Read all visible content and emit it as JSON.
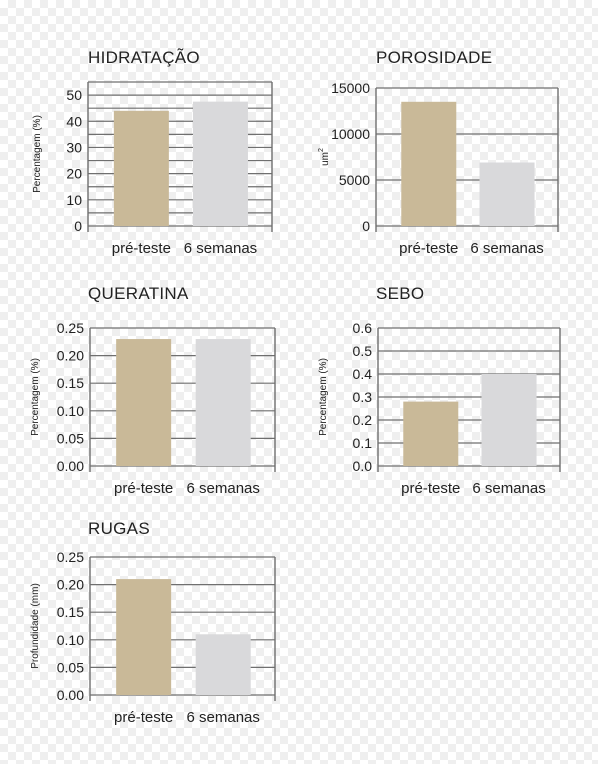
{
  "colors": {
    "pre_teste": "#c9b998",
    "semanas": "#d9d9db",
    "grid": "#6f6f6f"
  },
  "chart_data": [
    {
      "id": "hidratacao",
      "type": "bar",
      "title": "HIDRATAÇÃO",
      "ylabel": "Percentagem (%)",
      "ylabel_sup": "",
      "categories": [
        "pré-teste",
        "6 semanas"
      ],
      "values": [
        44,
        47.5
      ],
      "ylim": [
        0,
        55
      ],
      "yticks": [
        0,
        10,
        20,
        30,
        40,
        50
      ],
      "ytick_labels": [
        "0",
        "10",
        "20",
        "30",
        "40",
        "50"
      ],
      "gridlines": [
        0,
        5,
        10,
        15,
        20,
        25,
        30,
        35,
        40,
        45,
        50,
        55
      ],
      "grid": true
    },
    {
      "id": "porosidade",
      "type": "bar",
      "title": "POROSIDADE",
      "ylabel": "um",
      "ylabel_sup": "2",
      "categories": [
        "pré-teste",
        "6 semanas"
      ],
      "values": [
        13500,
        6900
      ],
      "ylim": [
        0,
        15000
      ],
      "yticks": [
        0,
        5000,
        10000,
        15000
      ],
      "ytick_labels": [
        "0",
        "5000",
        "10000",
        "15000"
      ],
      "gridlines": [
        0,
        5000,
        10000,
        15000
      ],
      "grid": true
    },
    {
      "id": "queratina",
      "type": "bar",
      "title": "QUERATINA",
      "ylabel": "Percentagem (%)",
      "ylabel_sup": "",
      "categories": [
        "pré-teste",
        "6 semanas"
      ],
      "values": [
        0.23,
        0.23
      ],
      "ylim": [
        0,
        0.25
      ],
      "yticks": [
        0,
        0.05,
        0.1,
        0.15,
        0.2,
        0.25
      ],
      "ytick_labels": [
        "0.00",
        "0.05",
        "0.10",
        "0.15",
        "0.20",
        "0.25"
      ],
      "gridlines": [
        0,
        0.05,
        0.1,
        0.15,
        0.2,
        0.25
      ],
      "grid": true
    },
    {
      "id": "sebo",
      "type": "bar",
      "title": "SEBO",
      "ylabel": "Percentagem (%)",
      "ylabel_sup": "",
      "categories": [
        "pré-teste",
        "6 semanas"
      ],
      "values": [
        0.28,
        0.4
      ],
      "ylim": [
        0,
        0.6
      ],
      "yticks": [
        0,
        0.1,
        0.2,
        0.3,
        0.4,
        0.5,
        0.6
      ],
      "ytick_labels": [
        "0.0",
        "0.1",
        "0.2",
        "0.3",
        "0.4",
        "0.5",
        "0.6"
      ],
      "gridlines": [
        0,
        0.1,
        0.2,
        0.3,
        0.4,
        0.5,
        0.6
      ],
      "grid": true
    },
    {
      "id": "rugas",
      "type": "bar",
      "title": "RUGAS",
      "ylabel": "Profundidade (mm)",
      "ylabel_sup": "",
      "categories": [
        "pré-teste",
        "6 semanas"
      ],
      "values": [
        0.21,
        0.11
      ],
      "ylim": [
        0,
        0.25
      ],
      "yticks": [
        0,
        0.05,
        0.1,
        0.15,
        0.2,
        0.25
      ],
      "ytick_labels": [
        "0.00",
        "0.05",
        "0.10",
        "0.15",
        "0.20",
        "0.25"
      ],
      "gridlines": [
        0,
        0.05,
        0.1,
        0.15,
        0.2,
        0.25
      ],
      "grid": true
    }
  ]
}
